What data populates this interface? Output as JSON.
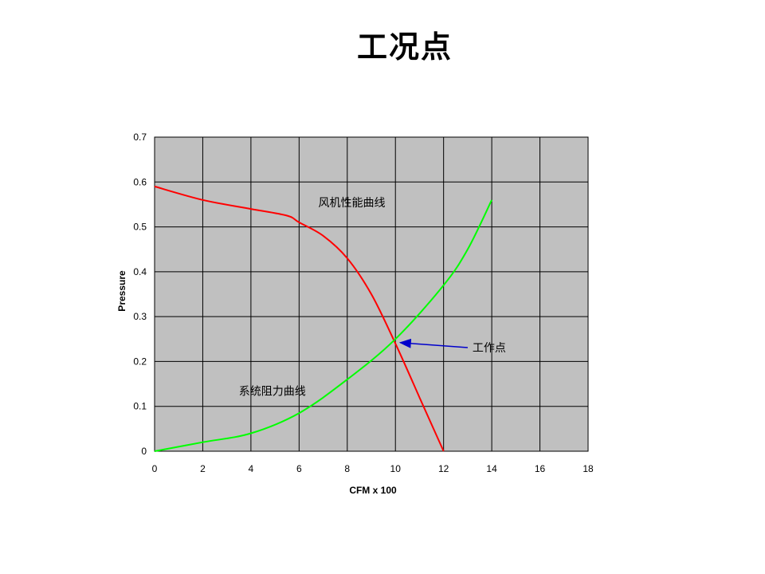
{
  "slide": {
    "title": "工况点"
  },
  "chart_data": {
    "type": "line",
    "title": "",
    "xlabel": "CFM x 100",
    "ylabel": "Pressure",
    "xlim": [
      0,
      18
    ],
    "ylim": [
      0,
      0.7
    ],
    "x_ticks": [
      0,
      2,
      4,
      6,
      8,
      10,
      12,
      14,
      16,
      18
    ],
    "y_ticks": [
      0,
      0.1,
      0.2,
      0.3,
      0.4,
      0.5,
      0.6,
      0.7
    ],
    "y_tick_labels": [
      "0",
      "0.1",
      "0.2",
      "0.3",
      "0.4",
      "0.5",
      "0.6",
      "0.7"
    ],
    "grid": true,
    "plot_background": "#c0c0c0",
    "legend": "none",
    "series": [
      {
        "color": "#ff0000",
        "points": [
          [
            0,
            0.59
          ],
          [
            2,
            0.56
          ],
          [
            4,
            0.54
          ],
          [
            5.5,
            0.525
          ],
          [
            6,
            0.51
          ],
          [
            7,
            0.48
          ],
          [
            8,
            0.43
          ],
          [
            9,
            0.35
          ],
          [
            10,
            0.24
          ],
          [
            11,
            0.12
          ],
          [
            12,
            0.0
          ]
        ]
      },
      {
        "color": "#00ff00",
        "points": [
          [
            0,
            0.0
          ],
          [
            2,
            0.02
          ],
          [
            4,
            0.04
          ],
          [
            6,
            0.085
          ],
          [
            8,
            0.16
          ],
          [
            10,
            0.25
          ],
          [
            12,
            0.37
          ],
          [
            13,
            0.45
          ],
          [
            14,
            0.56
          ]
        ]
      }
    ],
    "annotations": [
      {
        "text": "风机性能曲线",
        "x": 6.8,
        "y": 0.545
      },
      {
        "text": "系统阻力曲线",
        "x": 3.5,
        "y": 0.125
      },
      {
        "text": "工作点",
        "x": 13.2,
        "y": 0.222,
        "arrow_to": [
          10.2,
          0.242
        ],
        "arrow_color": "#0000cc"
      }
    ]
  }
}
